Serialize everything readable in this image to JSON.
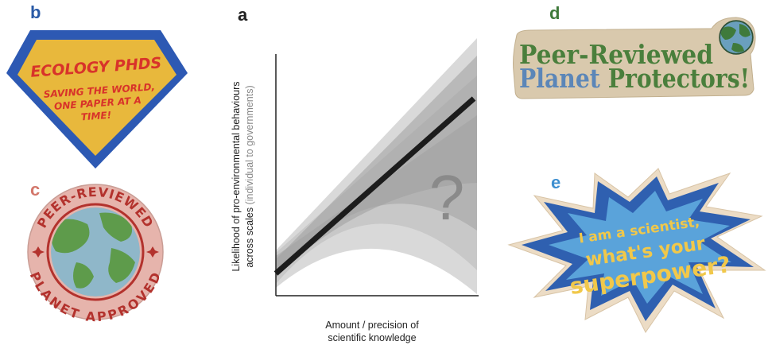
{
  "panels": {
    "a": {
      "letter": "a",
      "color": "#222222"
    },
    "b": {
      "letter": "b",
      "color": "#2a5aa6"
    },
    "c": {
      "letter": "c",
      "color": "#d3776b"
    },
    "d": {
      "letter": "d",
      "color": "#3f7a3b"
    },
    "e": {
      "letter": "e",
      "color": "#3e8fd0"
    }
  },
  "chart": {
    "ylabel_main": "Likelihood of pro-environmental behaviours",
    "ylabel_sub_prefix": "across scales ",
    "ylabel_sub_paren": "(individual to governments)",
    "xlabel_line1": "Amount / precision of",
    "xlabel_line2": "scientific knowledge",
    "question_mark": "?"
  },
  "sticker_b": {
    "title": "ECOLOGY PHDS",
    "line1": "SAVING THE WORLD,",
    "line2": "ONE PAPER AT A",
    "line3": "TIME!",
    "colors": {
      "outer": "#2d59b3",
      "inner": "#e8b83c",
      "text": "#d8332a"
    }
  },
  "sticker_c": {
    "top_text": "PEER-REVIEWED",
    "bottom_text": "PLANET APPROVED",
    "colors": {
      "ring": "#e6b4ac",
      "text": "#b3322d",
      "ocean": "#8fb7c9",
      "land": "#5e9b4b"
    }
  },
  "sticker_d": {
    "line1": "Peer-Reviewed",
    "line2_word1": "Planet",
    "line2_word2": "Protectors!",
    "colors": {
      "green": "#4a7f3c",
      "blue": "#5b86b8",
      "paper": "#d9c9ad"
    }
  },
  "sticker_e": {
    "line1": "I am a scientist,",
    "line2": "what's your",
    "line3": "superpower?",
    "colors": {
      "outer": "#2f60b0",
      "inner": "#5aa3da",
      "text": "#f1c84a"
    }
  }
}
